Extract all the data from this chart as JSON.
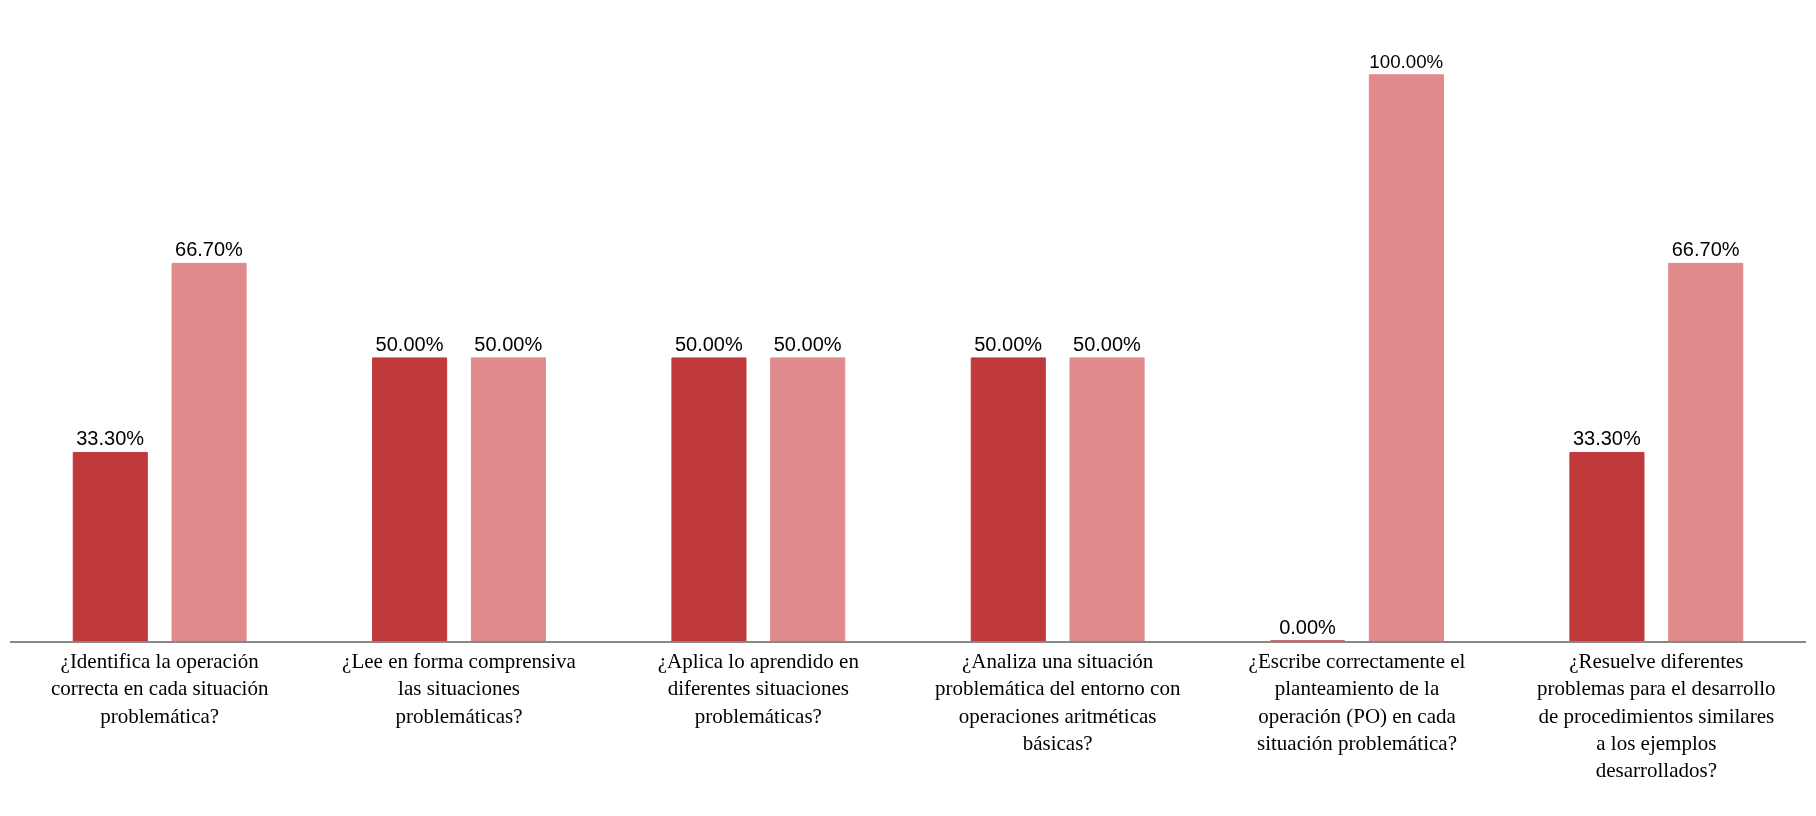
{
  "chart_data": {
    "type": "bar",
    "categories": [
      "¿Identifica la operación correcta en cada situación problemática?",
      "¿Lee en forma comprensiva las situaciones problemáticas?",
      "¿Aplica lo aprendido en diferentes situaciones problemáticas?",
      "¿Analiza una situación problemática del entorno con operaciones aritméticas básicas?",
      "¿Escribe correctamente el planteamiento de la operación (PO) en cada situación problemática?",
      "¿Resuelve diferentes problemas para el desarrollo de procedimientos similares a los ejemplos desarrollados?"
    ],
    "series": [
      {
        "color": "#c0393b",
        "values": [
          33.3,
          50,
          50,
          50,
          0,
          33.3
        ],
        "value_labels": [
          "33.30%",
          "50.00%",
          "50.00%",
          "50.00%",
          "0.00%",
          "33.30%"
        ]
      },
      {
        "color": "#e08a8c",
        "values": [
          66.7,
          50,
          50,
          50,
          100,
          66.7
        ],
        "value_labels": [
          "66.70%",
          "50.00%",
          "50.00%",
          "50.00%",
          "100.00%",
          "66.70%"
        ]
      }
    ],
    "legend": false,
    "grid": false
  }
}
